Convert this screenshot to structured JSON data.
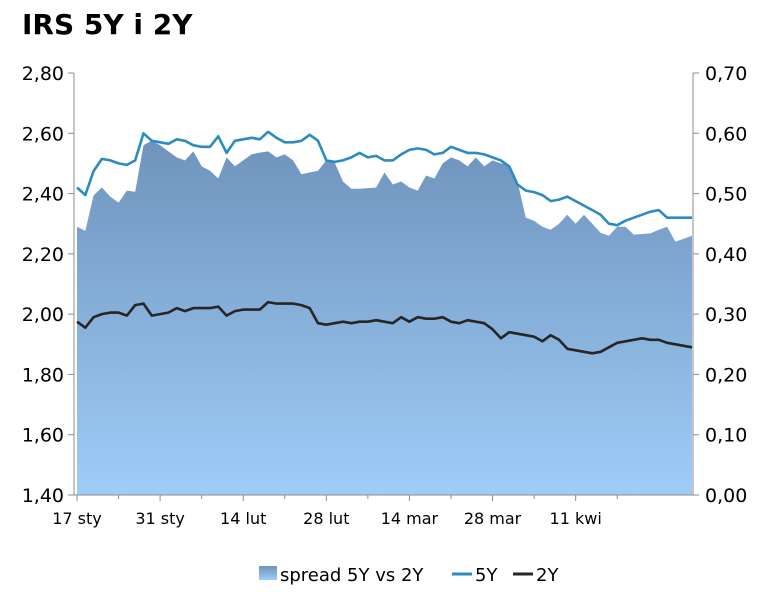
{
  "chart_data": {
    "type": "area",
    "title": "IRS 5Y i 2Y",
    "x_ticks": [
      "17 sty",
      "31 sty",
      "14 lut",
      "28 lut",
      "14 mar",
      "28 mar",
      "11 kwi"
    ],
    "y_left": {
      "range": [
        1.4,
        2.8
      ],
      "ticks": [
        "1,40",
        "1,60",
        "1,80",
        "2,00",
        "2,20",
        "2,40",
        "2,60",
        "2,80"
      ]
    },
    "y_right": {
      "range": [
        0.0,
        0.7
      ],
      "ticks": [
        "0,00",
        "0,10",
        "0,20",
        "0,30",
        "0,40",
        "0,50",
        "0,60",
        "0,70"
      ]
    },
    "legend_position": "bottom",
    "colors": {
      "spread_top": "#6f93bd",
      "spread_bottom": "#9ecdf7",
      "five_year": "#2a8cc0",
      "two_year": "#262626",
      "axis": "#8c8c8c"
    },
    "series": [
      {
        "name": "spread 5Y vs 2Y",
        "axis": "right",
        "kind": "area",
        "values": [
          0.445,
          0.438,
          0.497,
          0.51,
          0.495,
          0.485,
          0.505,
          0.503,
          0.58,
          0.588,
          0.58,
          0.57,
          0.56,
          0.555,
          0.57,
          0.545,
          0.538,
          0.525,
          0.56,
          0.545,
          0.555,
          0.565,
          0.568,
          0.57,
          0.56,
          0.565,
          0.555,
          0.532,
          0.535,
          0.538,
          0.555,
          0.552,
          0.52,
          0.508,
          0.508,
          0.509,
          0.51,
          0.535,
          0.515,
          0.52,
          0.51,
          0.505,
          0.53,
          0.525,
          0.55,
          0.56,
          0.555,
          0.545,
          0.56,
          0.545,
          0.555,
          0.55,
          0.548,
          0.52,
          0.46,
          0.455,
          0.445,
          0.44,
          0.45,
          0.465,
          0.45,
          0.465,
          0.45,
          0.435,
          0.43,
          0.445,
          0.445,
          0.432,
          0.433,
          0.434,
          0.44,
          0.445,
          0.42,
          0.425,
          0.43
        ]
      },
      {
        "name": "5Y",
        "axis": "left",
        "kind": "line",
        "values": [
          2.42,
          2.395,
          2.475,
          2.515,
          2.51,
          2.5,
          2.495,
          2.51,
          2.6,
          2.575,
          2.57,
          2.565,
          2.58,
          2.575,
          2.56,
          2.555,
          2.555,
          2.59,
          2.535,
          2.575,
          2.58,
          2.585,
          2.58,
          2.605,
          2.585,
          2.57,
          2.57,
          2.575,
          2.595,
          2.575,
          2.51,
          2.505,
          2.51,
          2.52,
          2.535,
          2.52,
          2.525,
          2.51,
          2.51,
          2.53,
          2.545,
          2.55,
          2.545,
          2.53,
          2.535,
          2.555,
          2.545,
          2.535,
          2.535,
          2.53,
          2.52,
          2.51,
          2.49,
          2.43,
          2.41,
          2.405,
          2.395,
          2.375,
          2.38,
          2.39,
          2.375,
          2.36,
          2.345,
          2.33,
          2.3,
          2.295,
          2.31,
          2.32,
          2.33,
          2.34,
          2.345,
          2.32,
          2.32,
          2.32,
          2.32
        ]
      },
      {
        "name": "2Y",
        "axis": "left",
        "kind": "line",
        "values": [
          1.975,
          1.955,
          1.99,
          2.0,
          2.005,
          2.005,
          1.995,
          2.03,
          2.035,
          1.995,
          2.0,
          2.005,
          2.02,
          2.01,
          2.02,
          2.02,
          2.02,
          2.025,
          1.995,
          2.01,
          2.015,
          2.015,
          2.015,
          2.04,
          2.035,
          2.035,
          2.035,
          2.03,
          2.02,
          1.97,
          1.965,
          1.97,
          1.975,
          1.97,
          1.975,
          1.975,
          1.98,
          1.975,
          1.97,
          1.99,
          1.975,
          1.99,
          1.985,
          1.985,
          1.99,
          1.975,
          1.97,
          1.98,
          1.975,
          1.97,
          1.95,
          1.92,
          1.94,
          1.935,
          1.93,
          1.925,
          1.91,
          1.93,
          1.915,
          1.885,
          1.88,
          1.875,
          1.87,
          1.875,
          1.89,
          1.905,
          1.91,
          1.915,
          1.92,
          1.915,
          1.915,
          1.905,
          1.9,
          1.895,
          1.89
        ]
      }
    ]
  }
}
